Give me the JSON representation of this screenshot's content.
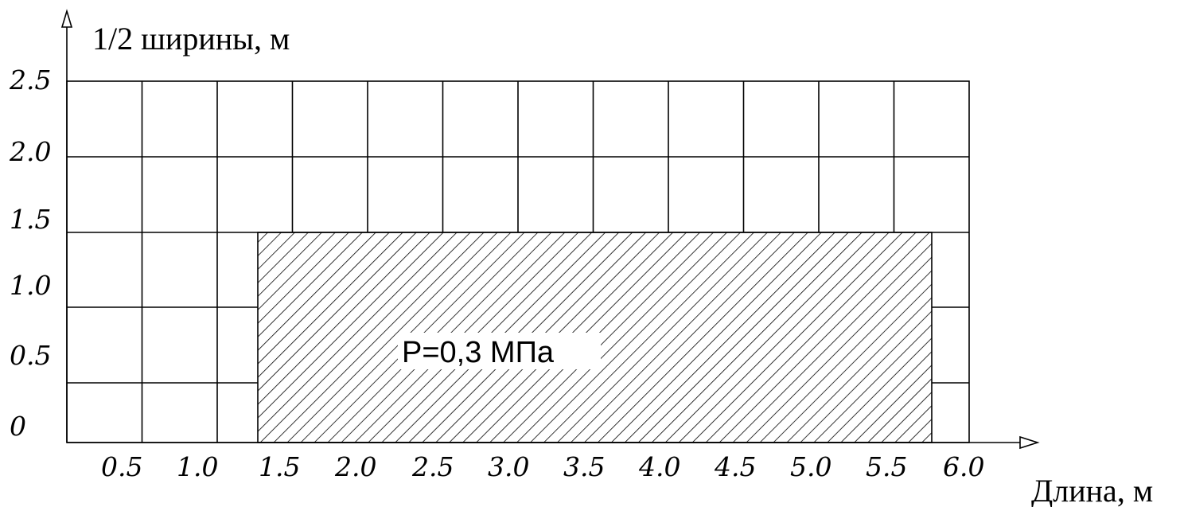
{
  "axes": {
    "y_title": "1/2 ширины, м",
    "x_title": "Длина, м"
  },
  "y_ticks": [
    "2.5",
    "2.0",
    "1.5",
    "1.0",
    "0.5",
    "0"
  ],
  "x_ticks": [
    "0.5",
    "1.0",
    "1.5",
    "2.0",
    "2.5",
    "3.0",
    "3.5",
    "4.0",
    "4.5",
    "5.0",
    "5.5",
    "6.0"
  ],
  "load": {
    "label": "P=0,3 МПа",
    "x_from": 1.25,
    "x_to": 5.75,
    "y_from": 0,
    "y_to": 1.5
  },
  "colors": {
    "line": "#000000",
    "background": "#ffffff"
  }
}
